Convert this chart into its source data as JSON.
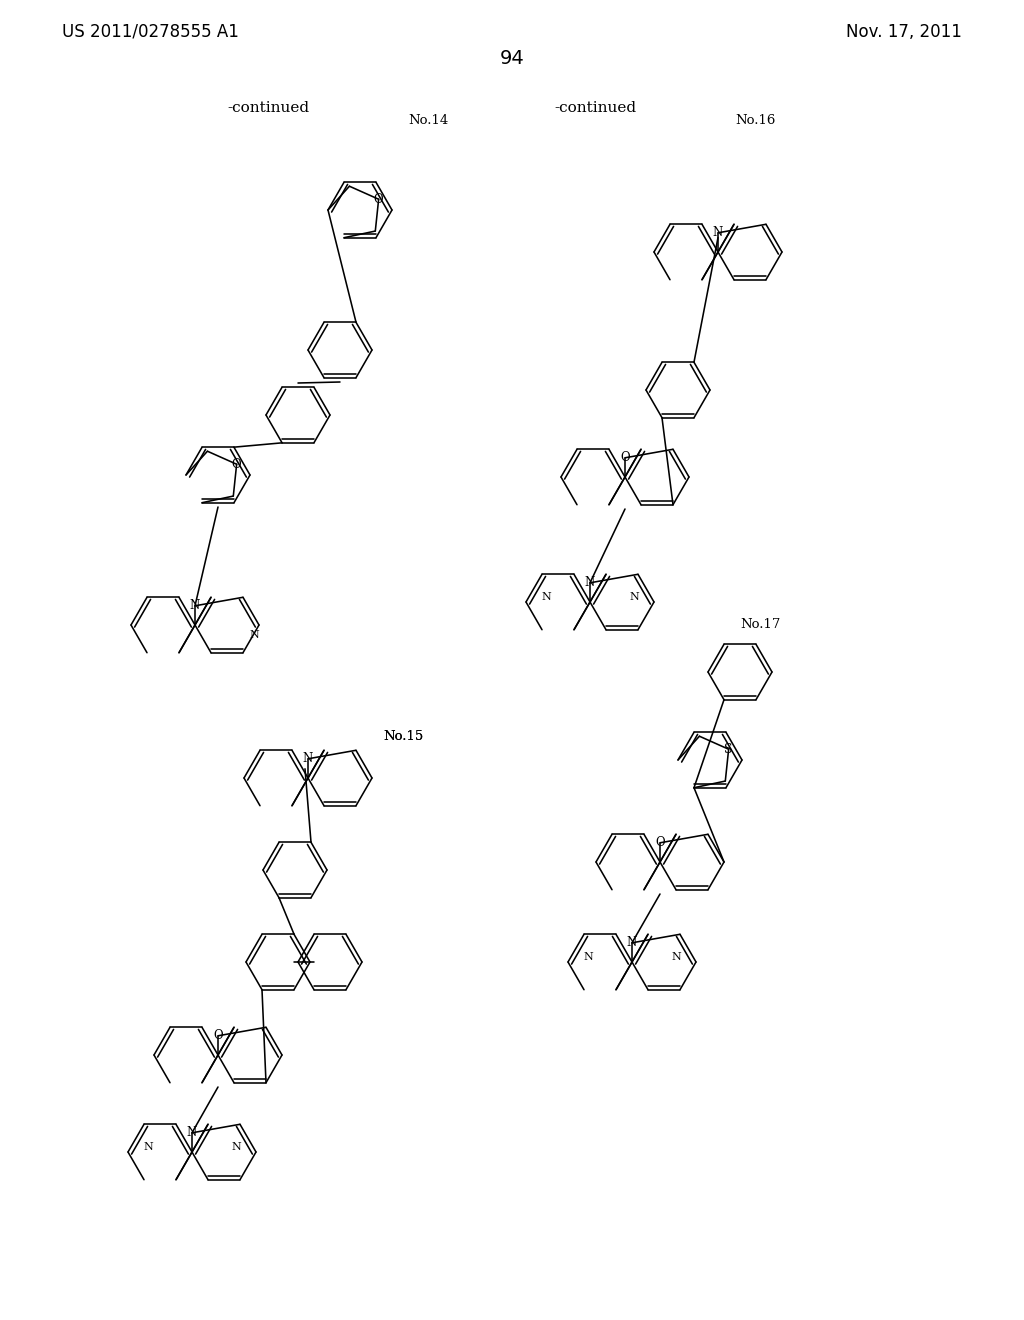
{
  "background_color": "#ffffff",
  "header_left": "US 2011/0278555 A1",
  "header_right": "Nov. 17, 2011",
  "page_number": "94"
}
